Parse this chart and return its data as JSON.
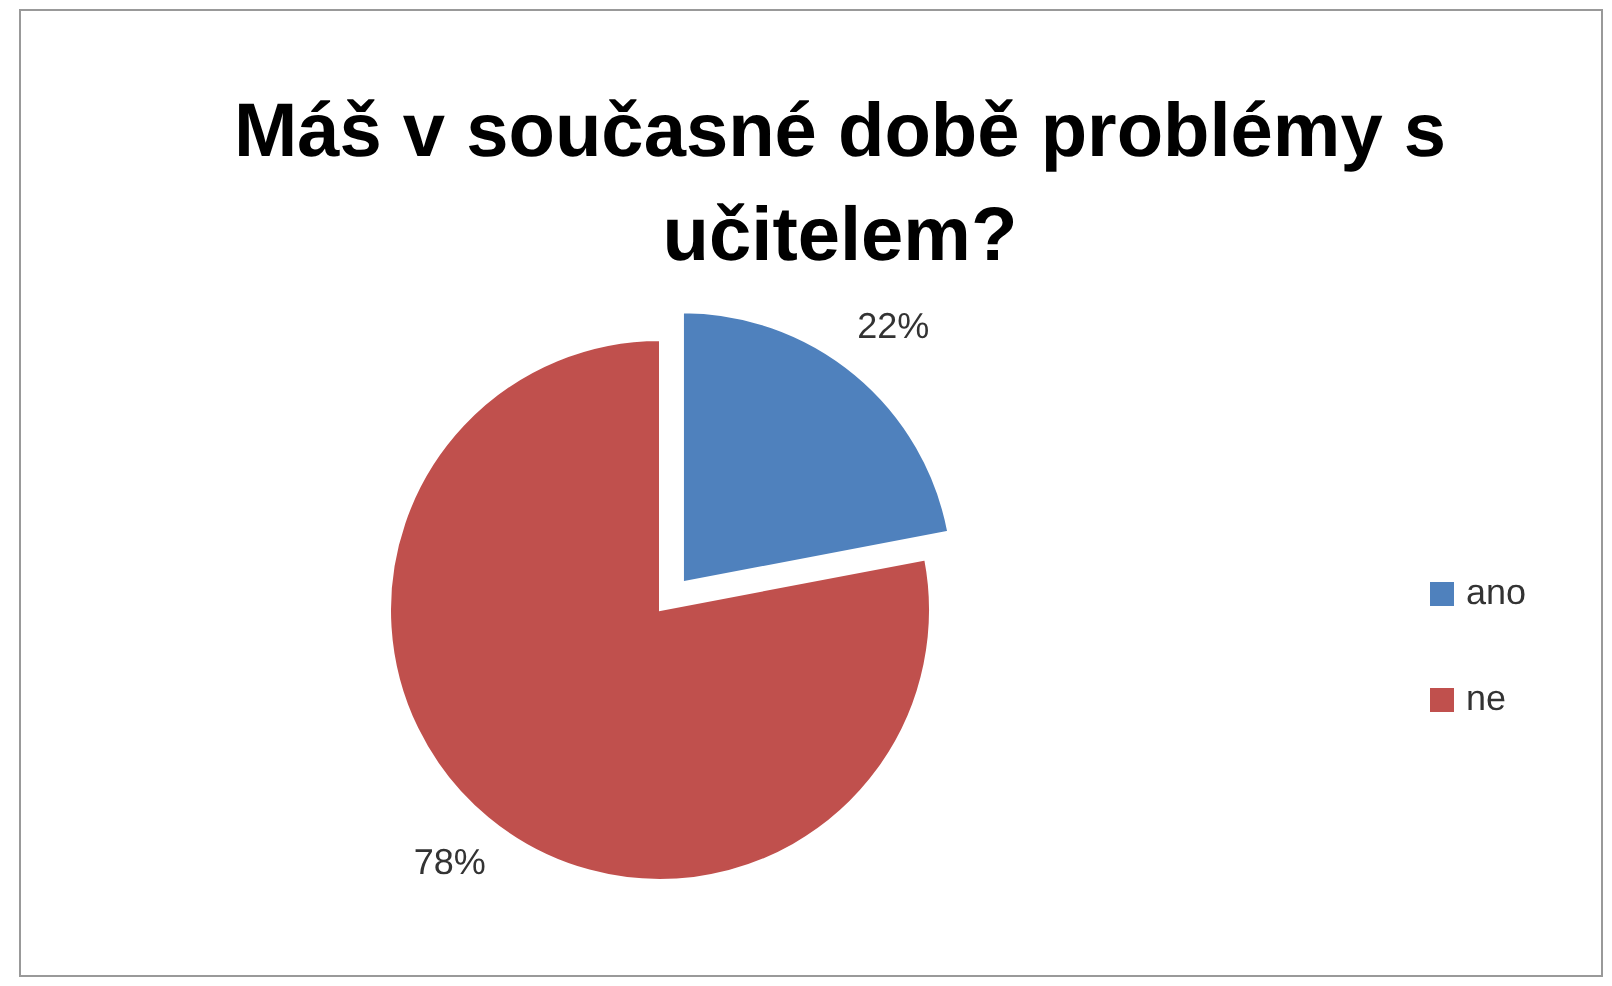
{
  "chart_data": {
    "type": "pie",
    "title": "Máš v současné době problémy s učitelem?",
    "categories": [
      "ano",
      "ne"
    ],
    "values": [
      22,
      78
    ],
    "colors": [
      "#4f81bd",
      "#c0504d"
    ],
    "value_labels": [
      "22%",
      "78%"
    ],
    "legend": "right"
  }
}
